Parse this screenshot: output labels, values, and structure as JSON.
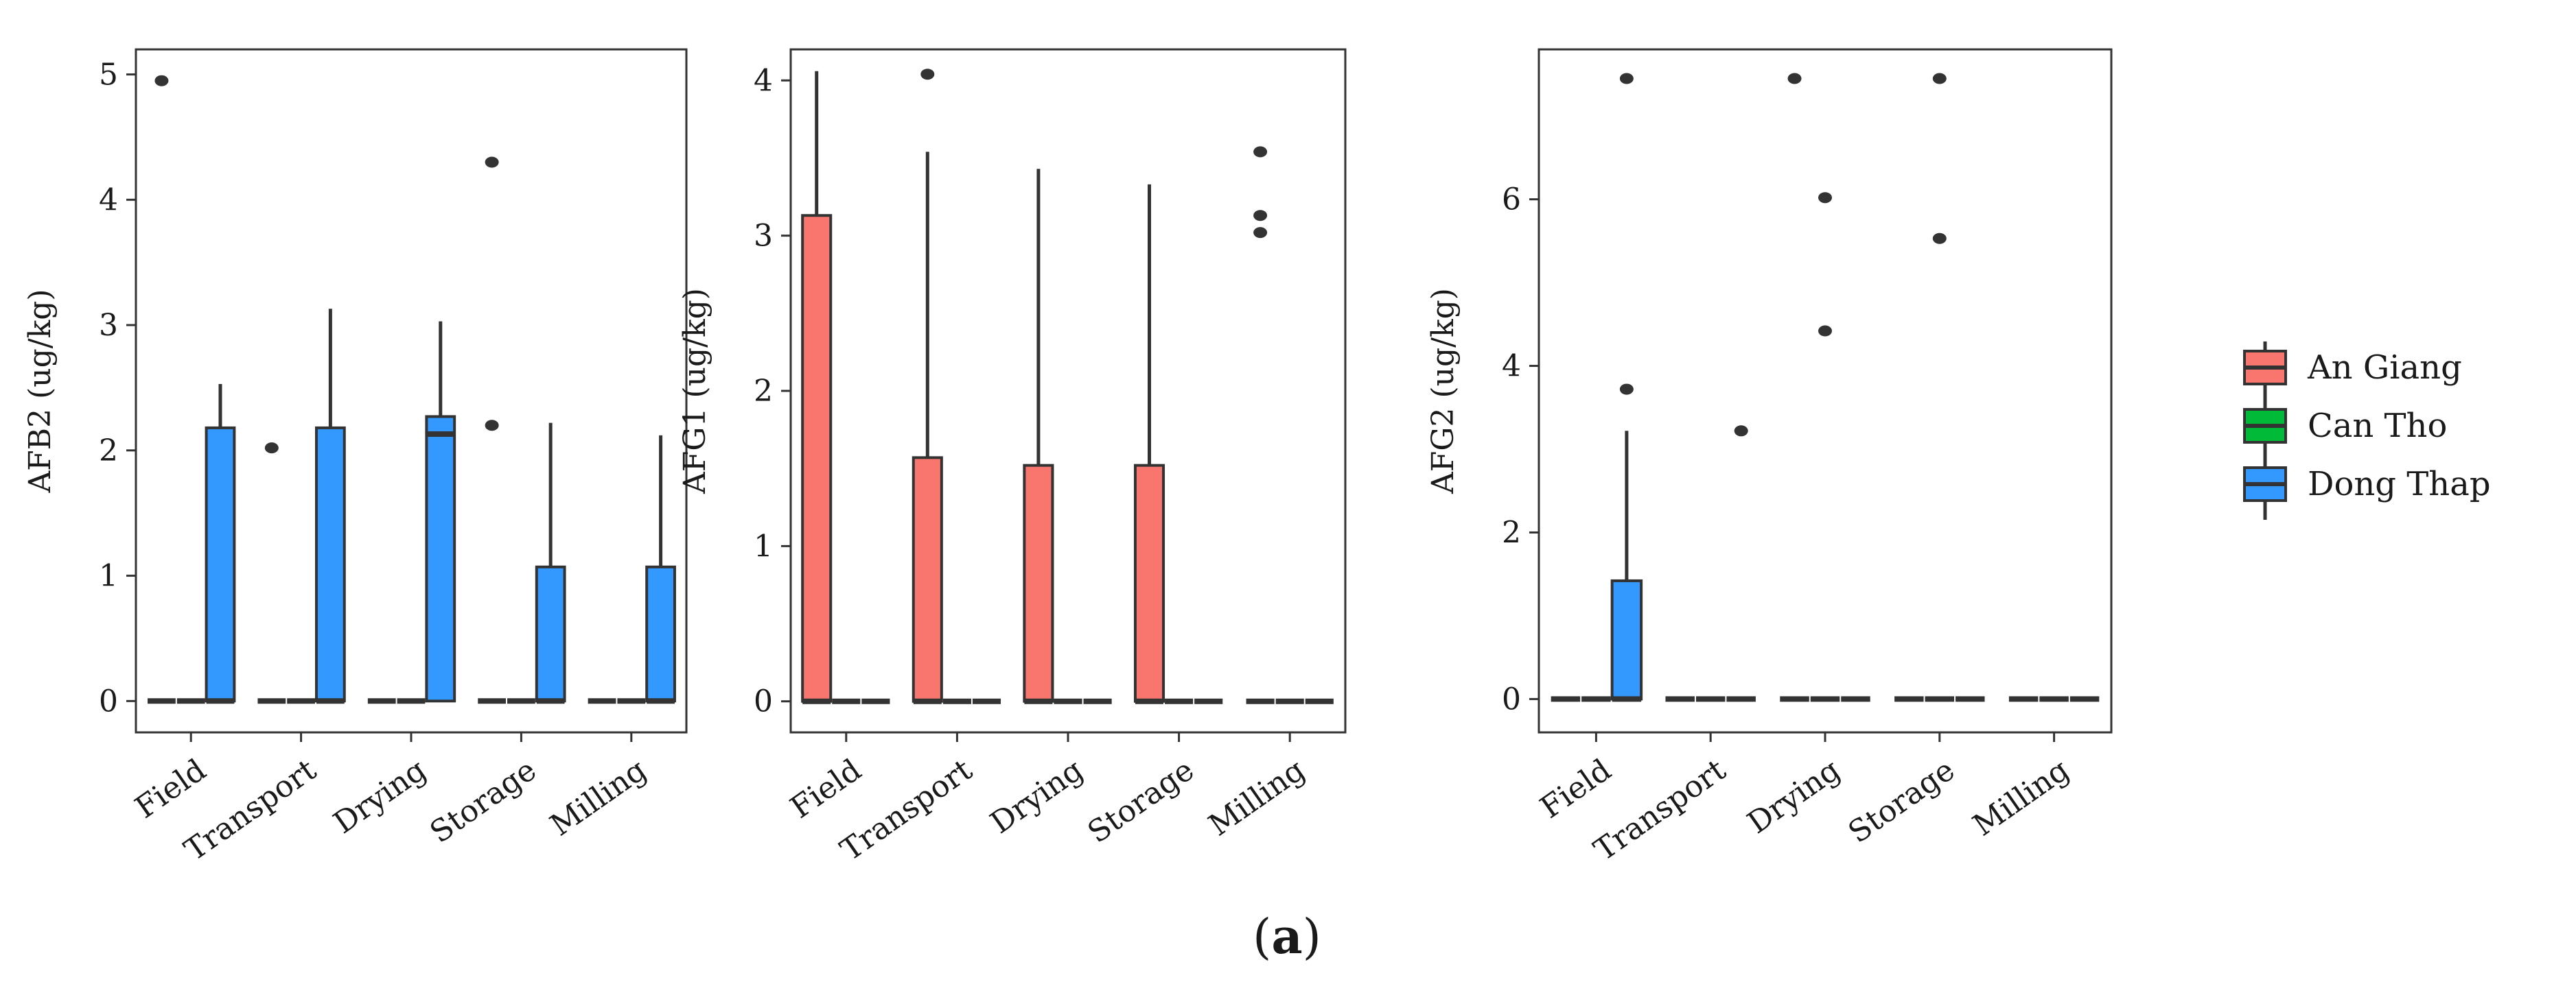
{
  "figure": {
    "caption": "(a)",
    "caption_prefix": "(",
    "caption_letter": "a",
    "caption_suffix": ")"
  },
  "legend": {
    "items": [
      {
        "label": "An Giang",
        "color": "#F8766D"
      },
      {
        "label": "Can Tho",
        "color": "#00BA38"
      },
      {
        "label": "Dong Thap",
        "color": "#3399FF"
      }
    ]
  },
  "chart_data": [
    {
      "type": "boxplot",
      "ylabel": "AFB2 (ug/kg)",
      "xlabel": "",
      "categories": [
        "Field",
        "Transport",
        "Drying",
        "Storage",
        "Milling"
      ],
      "ylim": [
        -0.25,
        5.2
      ],
      "yticks": [
        0,
        1,
        2,
        3,
        4,
        5
      ],
      "grid": false,
      "series": [
        {
          "name": "An Giang",
          "boxes": [
            {
              "q1": 0,
              "median": 0,
              "q3": 0,
              "whisker_low": 0,
              "whisker_high": 0,
              "outliers": [
                4.95
              ]
            },
            {
              "q1": 0,
              "median": 0,
              "q3": 0,
              "whisker_low": 0,
              "whisker_high": 0,
              "outliers": [
                2.02
              ]
            },
            {
              "q1": 0,
              "median": 0,
              "q3": 0,
              "whisker_low": 0,
              "whisker_high": 0,
              "outliers": []
            },
            {
              "q1": 0,
              "median": 0,
              "q3": 0,
              "whisker_low": 0,
              "whisker_high": 0,
              "outliers": [
                4.3,
                2.2
              ]
            },
            {
              "q1": 0,
              "median": 0,
              "q3": 0,
              "whisker_low": 0,
              "whisker_high": 0,
              "outliers": []
            }
          ]
        },
        {
          "name": "Can Tho",
          "boxes": [
            {
              "q1": 0,
              "median": 0,
              "q3": 0,
              "whisker_low": 0,
              "whisker_high": 0,
              "outliers": []
            },
            {
              "q1": 0,
              "median": 0,
              "q3": 0,
              "whisker_low": 0,
              "whisker_high": 0,
              "outliers": []
            },
            {
              "q1": 0,
              "median": 0,
              "q3": 0,
              "whisker_low": 0,
              "whisker_high": 0,
              "outliers": []
            },
            {
              "q1": 0,
              "median": 0,
              "q3": 0,
              "whisker_low": 0,
              "whisker_high": 0,
              "outliers": []
            },
            {
              "q1": 0,
              "median": 0,
              "q3": 0,
              "whisker_low": 0,
              "whisker_high": 0,
              "outliers": []
            }
          ]
        },
        {
          "name": "Dong Thap",
          "boxes": [
            {
              "q1": 0,
              "median": 0,
              "q3": 2.18,
              "whisker_low": 0,
              "whisker_high": 2.53,
              "outliers": []
            },
            {
              "q1": 0,
              "median": 0,
              "q3": 2.18,
              "whisker_low": 0,
              "whisker_high": 3.13,
              "outliers": []
            },
            {
              "q1": 0,
              "median": 2.13,
              "q3": 2.27,
              "whisker_low": 0,
              "whisker_high": 3.03,
              "outliers": []
            },
            {
              "q1": 0,
              "median": 0,
              "q3": 1.07,
              "whisker_low": 0,
              "whisker_high": 2.22,
              "outliers": []
            },
            {
              "q1": 0,
              "median": 0,
              "q3": 1.07,
              "whisker_low": 0,
              "whisker_high": 2.12,
              "outliers": []
            }
          ]
        }
      ]
    },
    {
      "type": "boxplot",
      "ylabel": "AFG1 (ug/kg)",
      "xlabel": "",
      "categories": [
        "Field",
        "Transport",
        "Drying",
        "Storage",
        "Milling"
      ],
      "ylim": [
        -0.2,
        4.2
      ],
      "yticks": [
        0,
        1,
        2,
        3,
        4
      ],
      "grid": false,
      "series": [
        {
          "name": "An Giang",
          "boxes": [
            {
              "q1": 0,
              "median": 0,
              "q3": 3.13,
              "whisker_low": 0,
              "whisker_high": 4.06,
              "outliers": []
            },
            {
              "q1": 0,
              "median": 0,
              "q3": 1.57,
              "whisker_low": 0,
              "whisker_high": 3.54,
              "outliers": [
                4.04
              ]
            },
            {
              "q1": 0,
              "median": 0,
              "q3": 1.52,
              "whisker_low": 0,
              "whisker_high": 3.43,
              "outliers": []
            },
            {
              "q1": 0,
              "median": 0,
              "q3": 1.52,
              "whisker_low": 0,
              "whisker_high": 3.33,
              "outliers": []
            },
            {
              "q1": 0,
              "median": 0,
              "q3": 0,
              "whisker_low": 0,
              "whisker_high": 0,
              "outliers": [
                3.54,
                3.13,
                3.02
              ]
            }
          ]
        },
        {
          "name": "Can Tho",
          "boxes": [
            {
              "q1": 0,
              "median": 0,
              "q3": 0,
              "whisker_low": 0,
              "whisker_high": 0,
              "outliers": []
            },
            {
              "q1": 0,
              "median": 0,
              "q3": 0,
              "whisker_low": 0,
              "whisker_high": 0,
              "outliers": []
            },
            {
              "q1": 0,
              "median": 0,
              "q3": 0,
              "whisker_low": 0,
              "whisker_high": 0,
              "outliers": []
            },
            {
              "q1": 0,
              "median": 0,
              "q3": 0,
              "whisker_low": 0,
              "whisker_high": 0,
              "outliers": []
            },
            {
              "q1": 0,
              "median": 0,
              "q3": 0,
              "whisker_low": 0,
              "whisker_high": 0,
              "outliers": []
            }
          ]
        },
        {
          "name": "Dong Thap",
          "boxes": [
            {
              "q1": 0,
              "median": 0,
              "q3": 0,
              "whisker_low": 0,
              "whisker_high": 0,
              "outliers": []
            },
            {
              "q1": 0,
              "median": 0,
              "q3": 0,
              "whisker_low": 0,
              "whisker_high": 0,
              "outliers": []
            },
            {
              "q1": 0,
              "median": 0,
              "q3": 0,
              "whisker_low": 0,
              "whisker_high": 0,
              "outliers": []
            },
            {
              "q1": 0,
              "median": 0,
              "q3": 0,
              "whisker_low": 0,
              "whisker_high": 0,
              "outliers": []
            },
            {
              "q1": 0,
              "median": 0,
              "q3": 0,
              "whisker_low": 0,
              "whisker_high": 0,
              "outliers": []
            }
          ]
        }
      ]
    },
    {
      "type": "boxplot",
      "ylabel": "AFG2 (ug/kg)",
      "xlabel": "",
      "categories": [
        "Field",
        "Transport",
        "Drying",
        "Storage",
        "Milling"
      ],
      "ylim": [
        -0.4,
        7.8
      ],
      "yticks": [
        0,
        2,
        4,
        6
      ],
      "grid": false,
      "series": [
        {
          "name": "An Giang",
          "boxes": [
            {
              "q1": 0,
              "median": 0,
              "q3": 0,
              "whisker_low": 0,
              "whisker_high": 0,
              "outliers": []
            },
            {
              "q1": 0,
              "median": 0,
              "q3": 0,
              "whisker_low": 0,
              "whisker_high": 0,
              "outliers": []
            },
            {
              "q1": 0,
              "median": 0,
              "q3": 0,
              "whisker_low": 0,
              "whisker_high": 0,
              "outliers": [
                7.45
              ]
            },
            {
              "q1": 0,
              "median": 0,
              "q3": 0,
              "whisker_low": 0,
              "whisker_high": 0,
              "outliers": []
            },
            {
              "q1": 0,
              "median": 0,
              "q3": 0,
              "whisker_low": 0,
              "whisker_high": 0,
              "outliers": []
            }
          ]
        },
        {
          "name": "Can Tho",
          "boxes": [
            {
              "q1": 0,
              "median": 0,
              "q3": 0,
              "whisker_low": 0,
              "whisker_high": 0,
              "outliers": []
            },
            {
              "q1": 0,
              "median": 0,
              "q3": 0,
              "whisker_low": 0,
              "whisker_high": 0,
              "outliers": []
            },
            {
              "q1": 0,
              "median": 0,
              "q3": 0,
              "whisker_low": 0,
              "whisker_high": 0,
              "outliers": [
                6.02,
                4.42
              ]
            },
            {
              "q1": 0,
              "median": 0,
              "q3": 0,
              "whisker_low": 0,
              "whisker_high": 0,
              "outliers": [
                7.45,
                5.53
              ]
            },
            {
              "q1": 0,
              "median": 0,
              "q3": 0,
              "whisker_low": 0,
              "whisker_high": 0,
              "outliers": []
            }
          ]
        },
        {
          "name": "Dong Thap",
          "boxes": [
            {
              "q1": 0,
              "median": 0,
              "q3": 1.42,
              "whisker_low": 0,
              "whisker_high": 3.22,
              "outliers": [
                7.45,
                3.72
              ]
            },
            {
              "q1": 0,
              "median": 0,
              "q3": 0,
              "whisker_low": 0,
              "whisker_high": 0,
              "outliers": [
                3.22
              ]
            },
            {
              "q1": 0,
              "median": 0,
              "q3": 0,
              "whisker_low": 0,
              "whisker_high": 0,
              "outliers": []
            },
            {
              "q1": 0,
              "median": 0,
              "q3": 0,
              "whisker_low": 0,
              "whisker_high": 0,
              "outliers": []
            },
            {
              "q1": 0,
              "median": 0,
              "q3": 0,
              "whisker_low": 0,
              "whisker_high": 0,
              "outliers": []
            }
          ]
        }
      ]
    }
  ]
}
